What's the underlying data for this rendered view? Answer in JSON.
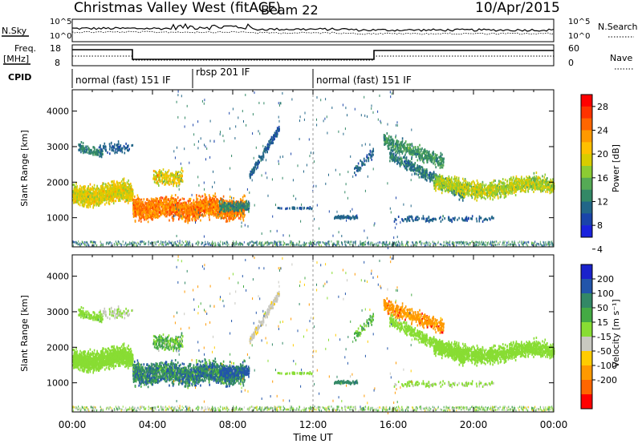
{
  "header": {
    "radar": "Christmas Valley West (fitACF)",
    "beam": "Beam 22",
    "date": "10/Apr/2015"
  },
  "top_panels": {
    "nsky_label": "N.Sky",
    "nsearch_label": "N.Search",
    "freq_label_1": "Freq.",
    "freq_label_2": "[MHz]",
    "nave_label": "Nave",
    "cpid_label": "CPID",
    "noise_ticks": [
      "10^5",
      "10^0"
    ],
    "freq_ticks": [
      "18",
      "8"
    ],
    "nave_ticks": [
      "60",
      "0"
    ],
    "cpid_segments": [
      {
        "label": "normal (fast) 151 IF",
        "start_hour": 0.0,
        "end_hour": 6.0
      },
      {
        "label": "rbsp 201 IF",
        "start_hour": 6.0,
        "end_hour": 12.0
      },
      {
        "label": "normal (fast) 151 IF",
        "start_hour": 12.0,
        "end_hour": 24.0
      }
    ]
  },
  "power_colorbar": {
    "label": "Power [dB]",
    "ticks": [
      "28",
      "24",
      "20",
      "16",
      "12",
      "8",
      "4"
    ],
    "colors": [
      "#ff0000",
      "#ff3300",
      "#ff6600",
      "#ff9900",
      "#ffc000",
      "#d8cc00",
      "#8ccc33",
      "#55aa55",
      "#338866",
      "#226688",
      "#1a44aa",
      "#1a22dd"
    ]
  },
  "velocity_colorbar": {
    "label": "Velocity [m s⁻¹]",
    "ticks": [
      "200",
      "100",
      "50",
      "15",
      "-15",
      "-50",
      "-100",
      "-200"
    ],
    "colors": [
      "#1a22cc",
      "#2255aa",
      "#338866",
      "#44aa44",
      "#88dd33",
      "#c8c8c0",
      "#ffcc00",
      "#ff9900",
      "#ff6600",
      "#ff0000"
    ]
  },
  "axes": {
    "xlabel": "Time UT",
    "ylabel": "Slant Range [km]",
    "xticks": [
      "00:00",
      "04:00",
      "08:00",
      "12:00",
      "16:00",
      "20:00",
      "00:00"
    ],
    "yticks": [
      "1000",
      "2000",
      "3000",
      "4000"
    ]
  },
  "chart_data": [
    {
      "type": "heatmap",
      "title": "",
      "xlabel": "",
      "ylabel": "Slant Range [km]",
      "xlim": [
        0,
        24
      ],
      "ylim": [
        180,
        4600
      ],
      "colorbar_label": "Power [dB]",
      "regions": [
        {
          "t0": 0.0,
          "t1": 3.0,
          "r0": 1250,
          "r1": 2100,
          "value": 18
        },
        {
          "t0": 3.0,
          "t1": 8.8,
          "r0": 900,
          "r1": 1800,
          "value": 24
        },
        {
          "t0": 1.2,
          "t1": 3.0,
          "r0": 2900,
          "r1": 3400,
          "value": 8
        },
        {
          "t0": 8.5,
          "t1": 10.5,
          "r0": 2200,
          "r1": 3800,
          "value": 6
        },
        {
          "t0": 15.5,
          "t1": 18.5,
          "r0": 2600,
          "r1": 3600,
          "value": 10
        },
        {
          "t0": 18.0,
          "t1": 24.0,
          "r0": 1300,
          "r1": 2500,
          "value": 16
        }
      ]
    },
    {
      "type": "heatmap",
      "title": "",
      "xlabel": "Time UT",
      "ylabel": "Slant Range [km]",
      "xlim": [
        0,
        24
      ],
      "ylim": [
        180,
        4600
      ],
      "colorbar_label": "Velocity [m s⁻¹]",
      "regions": [
        {
          "t0": 0.0,
          "t1": 3.0,
          "r0": 1250,
          "r1": 2100,
          "value": 0
        },
        {
          "t0": 3.0,
          "t1": 8.8,
          "r0": 900,
          "r1": 1800,
          "value": 120
        },
        {
          "t0": 15.5,
          "t1": 17.5,
          "r0": 2900,
          "r1": 3400,
          "value": -150
        },
        {
          "t0": 18.0,
          "t1": 24.0,
          "r0": 1300,
          "r1": 2500,
          "value": 0
        }
      ]
    }
  ]
}
